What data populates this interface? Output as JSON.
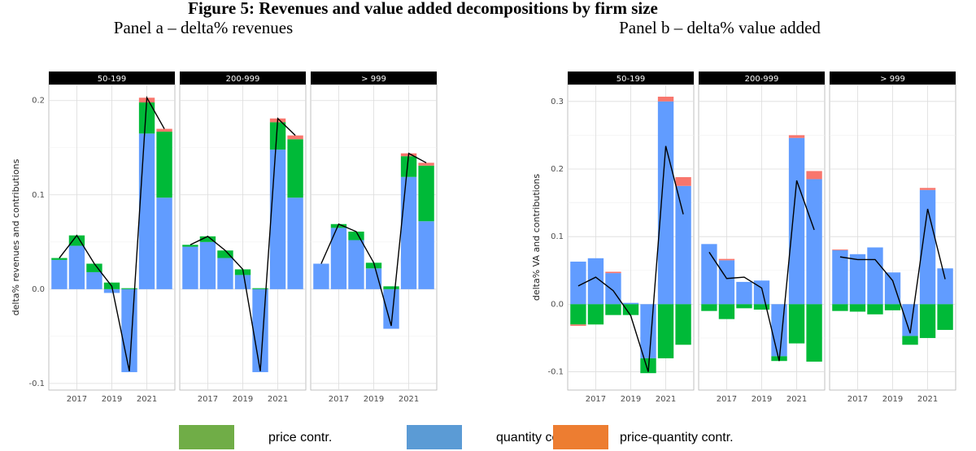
{
  "title": "Figure 5: Revenues and value added decompositions by firm size",
  "legend": [
    {
      "name": "price contr.",
      "color": "#70ad47"
    },
    {
      "name": "quantity contr.",
      "color": "#5b9bd5"
    },
    {
      "name": "price-quantity contr.",
      "color": "#ed7d31"
    }
  ],
  "chart_data": [
    {
      "title": "Panel a – delta% revenues",
      "ylabel": "delta% revenues and contributions",
      "facets": [
        {
          "type": "bar",
          "title": "50-199",
          "x": [
            2016,
            2017,
            2018,
            2019,
            2020,
            2021,
            2022
          ],
          "xlim": [
            2015.4,
            2022.6
          ],
          "xticks": [
            2017,
            2019,
            2021
          ],
          "ylim": [
            -0.107,
            0.217
          ],
          "yticks": [
            -0.1,
            {
              "value": 0,
              "label": "0.0"
            },
            0.1,
            0.2
          ],
          "series": [
            {
              "color": "#619cff",
              "values": [
                0.031,
                0.046,
                0.018,
                -0.004,
                -0.088,
                0.165,
                0.097
              ]
            },
            {
              "color": "#00ba38",
              "values": [
                0.002,
                0.011,
                0.009,
                0.007,
                0.001,
                0.033,
                0.07
              ]
            },
            {
              "color": "#f8766d",
              "values": [
                0,
                0,
                0,
                0,
                0,
                0.005,
                0.003
              ]
            }
          ],
          "total": {
            "color": "#000000",
            "values": [
              0.033,
              0.057,
              0.027,
              0.003,
              -0.087,
              0.203,
              0.17
            ]
          }
        },
        {
          "type": "bar",
          "title": "200-999",
          "x": [
            2016,
            2017,
            2018,
            2019,
            2020,
            2021,
            2022
          ],
          "xlim": [
            2015.4,
            2022.6
          ],
          "xticks": [
            2017,
            2019,
            2021
          ],
          "ylim": [
            -0.107,
            0.217
          ],
          "yticks": [
            -0.1,
            {
              "value": 0,
              "label": "0.0"
            },
            0.1,
            0.2
          ],
          "series": [
            {
              "color": "#619cff",
              "values": [
                0.045,
                0.05,
                0.033,
                0.015,
                -0.088,
                0.148,
                0.097
              ]
            },
            {
              "color": "#00ba38",
              "values": [
                0.002,
                0.006,
                0.008,
                0.006,
                0.001,
                0.029,
                0.062
              ]
            },
            {
              "color": "#f8766d",
              "values": [
                0,
                0,
                0,
                0,
                0,
                0.004,
                0.004
              ]
            }
          ],
          "total": {
            "color": "#000000",
            "values": [
              0.047,
              0.056,
              0.041,
              0.021,
              -0.087,
              0.181,
              0.163
            ]
          }
        },
        {
          "type": "bar",
          "title": "> 999",
          "x": [
            2016,
            2017,
            2018,
            2019,
            2020,
            2021,
            2022
          ],
          "xlim": [
            2015.4,
            2022.6
          ],
          "xticks": [
            2017,
            2019,
            2021
          ],
          "ylim": [
            -0.107,
            0.217
          ],
          "yticks": [
            -0.1,
            {
              "value": 0,
              "label": "0.0"
            },
            0.1,
            0.2
          ],
          "series": [
            {
              "color": "#619cff",
              "values": [
                0.027,
                0.065,
                0.052,
                0.022,
                -0.042,
                0.119,
                0.072
              ]
            },
            {
              "color": "#00ba38",
              "values": [
                0,
                0.004,
                0.009,
                0.006,
                0.003,
                0.022,
                0.059
              ]
            },
            {
              "color": "#f8766d",
              "values": [
                0,
                0,
                0,
                0,
                0,
                0.003,
                0.003
              ]
            }
          ],
          "total": {
            "color": "#000000",
            "values": [
              0.027,
              0.069,
              0.061,
              0.028,
              -0.039,
              0.144,
              0.134
            ]
          }
        }
      ]
    },
    {
      "title": "Panel b – delta% value added",
      "ylabel": "delta% VA and contributions",
      "facets": [
        {
          "type": "bar",
          "title": "50-199",
          "x": [
            2016,
            2017,
            2018,
            2019,
            2020,
            2021,
            2022
          ],
          "xlim": [
            2015.4,
            2022.6
          ],
          "xticks": [
            2017,
            2019,
            2021
          ],
          "ylim": [
            -0.127,
            0.325
          ],
          "yticks": [
            -0.1,
            {
              "value": 0,
              "label": "0.0"
            },
            0.1,
            0.2,
            0.3
          ],
          "series": [
            {
              "color": "#619cff",
              "values": [
                0.063,
                0.068,
                0.046,
                0.002,
                -0.08,
                0.3,
                0.175
              ]
            },
            {
              "color": "#00ba38",
              "values": [
                -0.03,
                -0.03,
                -0.016,
                -0.016,
                -0.022,
                -0.08,
                -0.06
              ]
            },
            {
              "color": "#f8766d",
              "values": [
                -0.002,
                0,
                0.002,
                0,
                0,
                0.007,
                0.013
              ]
            }
          ],
          "total": {
            "color": "#000000",
            "values": [
              0.027,
              0.04,
              0.02,
              -0.017,
              -0.1,
              0.234,
              0.133
            ]
          }
        },
        {
          "type": "bar",
          "title": "200-999",
          "x": [
            2016,
            2017,
            2018,
            2019,
            2020,
            2021,
            2022
          ],
          "xlim": [
            2015.4,
            2022.6
          ],
          "xticks": [
            2017,
            2019,
            2021
          ],
          "ylim": [
            -0.127,
            0.325
          ],
          "yticks": [
            -0.1,
            {
              "value": 0,
              "label": "0.0"
            },
            0.1,
            0.2,
            0.3
          ],
          "series": [
            {
              "color": "#619cff",
              "values": [
                0.089,
                0.065,
                0.033,
                0.035,
                -0.077,
                0.246,
                0.185
              ]
            },
            {
              "color": "#00ba38",
              "values": [
                -0.01,
                -0.022,
                -0.006,
                -0.008,
                -0.007,
                -0.058,
                -0.085
              ]
            },
            {
              "color": "#f8766d",
              "values": [
                0,
                0.002,
                0,
                0,
                0,
                0.004,
                0.012
              ]
            }
          ],
          "total": {
            "color": "#000000",
            "values": [
              0.077,
              0.038,
              0.04,
              0.024,
              -0.084,
              0.183,
              0.11
            ]
          }
        },
        {
          "type": "bar",
          "title": "> 999",
          "x": [
            2016,
            2017,
            2018,
            2019,
            2020,
            2021,
            2022
          ],
          "xlim": [
            2015.4,
            2022.6
          ],
          "xticks": [
            2017,
            2019,
            2021
          ],
          "ylim": [
            -0.127,
            0.325
          ],
          "yticks": [
            -0.1,
            {
              "value": 0,
              "label": "0.0"
            },
            0.1,
            0.2,
            0.3
          ],
          "series": [
            {
              "color": "#619cff",
              "values": [
                0.08,
                0.074,
                0.084,
                0.047,
                -0.047,
                0.169,
                0.053
              ]
            },
            {
              "color": "#00ba38",
              "values": [
                -0.01,
                -0.011,
                -0.015,
                -0.009,
                -0.013,
                -0.05,
                -0.038
              ]
            },
            {
              "color": "#f8766d",
              "values": [
                0.001,
                0,
                0,
                0,
                0,
                0.003,
                0
              ]
            }
          ],
          "total": {
            "color": "#000000",
            "values": [
              0.07,
              0.066,
              0.066,
              0.035,
              -0.043,
              0.141,
              0.037
            ]
          }
        }
      ]
    }
  ]
}
